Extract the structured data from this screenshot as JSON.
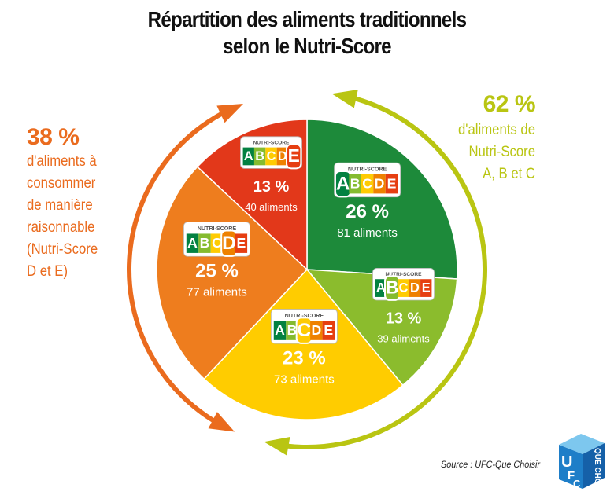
{
  "page": {
    "title_line1": "Répartition des aliments traditionnels",
    "title_line2": "selon le Nutri-Score",
    "source": "Source : UFC-Que Choisir"
  },
  "left_note": {
    "percent": "38 %",
    "lines": [
      "d'aliments à",
      "consommer",
      "de manière",
      "raisonnable",
      "(Nutri-Score",
      "D et E)"
    ],
    "color": "#ea6b1e"
  },
  "right_note": {
    "percent": "62 %",
    "lines": [
      "d'aliments de",
      "Nutri-Score",
      "A, B et C"
    ],
    "color": "#b9c512"
  },
  "badge": {
    "header": "NUTRI-SCORE",
    "letters": [
      "A",
      "B",
      "C",
      "D",
      "E"
    ],
    "colors": [
      "#038141",
      "#85bb2f",
      "#fecb02",
      "#ee8100",
      "#e63e11"
    ]
  },
  "logo": {
    "letters": [
      "U",
      "F",
      "C"
    ],
    "brand": "QUE CHOISIR"
  },
  "chart_data": {
    "type": "pie",
    "title": "Répartition des aliments traditionnels selon le Nutri-Score",
    "start": "12 o'clock, clockwise",
    "slices": [
      {
        "grade": "A",
        "value": 26,
        "label": "26 %",
        "count": "81 aliments",
        "color": "#1d8a3a"
      },
      {
        "grade": "B",
        "value": 13,
        "label": "13 %",
        "count": "39 aliments",
        "color": "#8bbc2d"
      },
      {
        "grade": "C",
        "value": 23,
        "label": "23 %",
        "count": "73 aliments",
        "color": "#ffcc00"
      },
      {
        "grade": "D",
        "value": 25,
        "label": "25 %",
        "count": "77 aliments",
        "color": "#ee7d1e"
      },
      {
        "grade": "E",
        "value": 13,
        "label": "13 %",
        "count": "40 aliments",
        "color": "#e2381a"
      }
    ]
  }
}
